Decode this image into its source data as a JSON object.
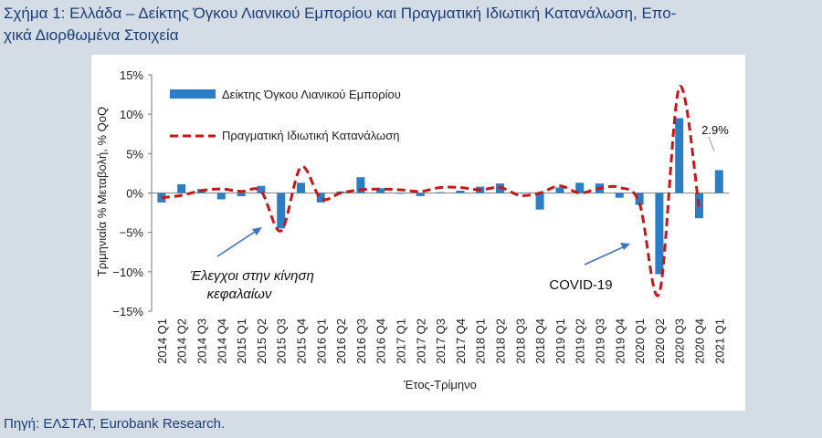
{
  "header": {
    "title": "Σχήμα 1: Ελλάδα – Δείκτης Όγκου Λιανικού Εμπορίου και Πραγματική Ιδιωτική Κατανάλωση, Επο-\nχικά Διορθωμένα Στοιχεία"
  },
  "footer": {
    "source": "Πηγή: ΕΛΣΤΑΤ, Eurobank Research."
  },
  "colors": {
    "bar": "#2a7ec6",
    "line": "#c41717",
    "background": "#d4dde6",
    "text_blue": "#1a3e78",
    "arrow": "#4472c4"
  },
  "chart_data": {
    "type": "bar",
    "xlabel": "Έτος-Τρίμηνο",
    "ylabel": "Τριμηνιαία % Μεταβολή, % QoQ",
    "ylim": [
      -15,
      15
    ],
    "yticks": [
      -15,
      -10,
      -5,
      0,
      5,
      10,
      15
    ],
    "ytick_labels": [
      "−15%",
      "−10%",
      "−5%",
      "0%",
      "5%",
      "10%",
      "15%"
    ],
    "legend_position": "top-left",
    "categories": [
      "2014 Q1",
      "2014 Q2",
      "2014 Q3",
      "2014 Q4",
      "2015 Q1",
      "2015 Q2",
      "2015 Q3",
      "2015 Q4",
      "2016 Q1",
      "2016 Q2",
      "2016 Q3",
      "2016 Q4",
      "2017 Q1",
      "2017 Q2",
      "2017 Q3",
      "2017 Q4",
      "2018 Q1",
      "2018 Q2",
      "2018 Q3",
      "2018 Q4",
      "2019 Q1",
      "2019 Q2",
      "2019 Q3",
      "2019 Q4",
      "2020 Q1",
      "2020 Q2",
      "2020 Q3",
      "2020 Q4",
      "2021 Q1"
    ],
    "series": [
      {
        "name": "Δείκτης Όγκου Λιανικού Εμπορίου",
        "kind": "bar",
        "values": [
          -1.2,
          1.1,
          0.5,
          -0.8,
          -0.4,
          0.9,
          -4.5,
          1.3,
          -1.2,
          0.2,
          2.0,
          0.6,
          -0.1,
          -0.4,
          0.1,
          0.3,
          0.8,
          1.2,
          0.0,
          -2.1,
          0.7,
          1.3,
          1.2,
          -0.6,
          -1.5,
          -10.3,
          9.5,
          -3.2,
          2.9
        ]
      },
      {
        "name": "Πραγματική Ιδιωτική Κατανάλωση",
        "kind": "line",
        "values": [
          -0.6,
          -0.3,
          0.3,
          0.5,
          0.2,
          0.2,
          -4.8,
          3.3,
          -0.7,
          0.0,
          0.4,
          0.5,
          0.4,
          0.2,
          0.7,
          0.7,
          0.4,
          0.7,
          -0.3,
          0.0,
          0.9,
          0.0,
          0.6,
          0.7,
          -1.3,
          -12.7,
          13.4,
          -1.9,
          null
        ]
      }
    ],
    "annotations": [
      {
        "text": "Έλεγχοι στην κίνηση",
        "line2": "κεφαλαίων"
      },
      {
        "text": "COVID-19"
      },
      {
        "text": "2.9%"
      }
    ]
  }
}
